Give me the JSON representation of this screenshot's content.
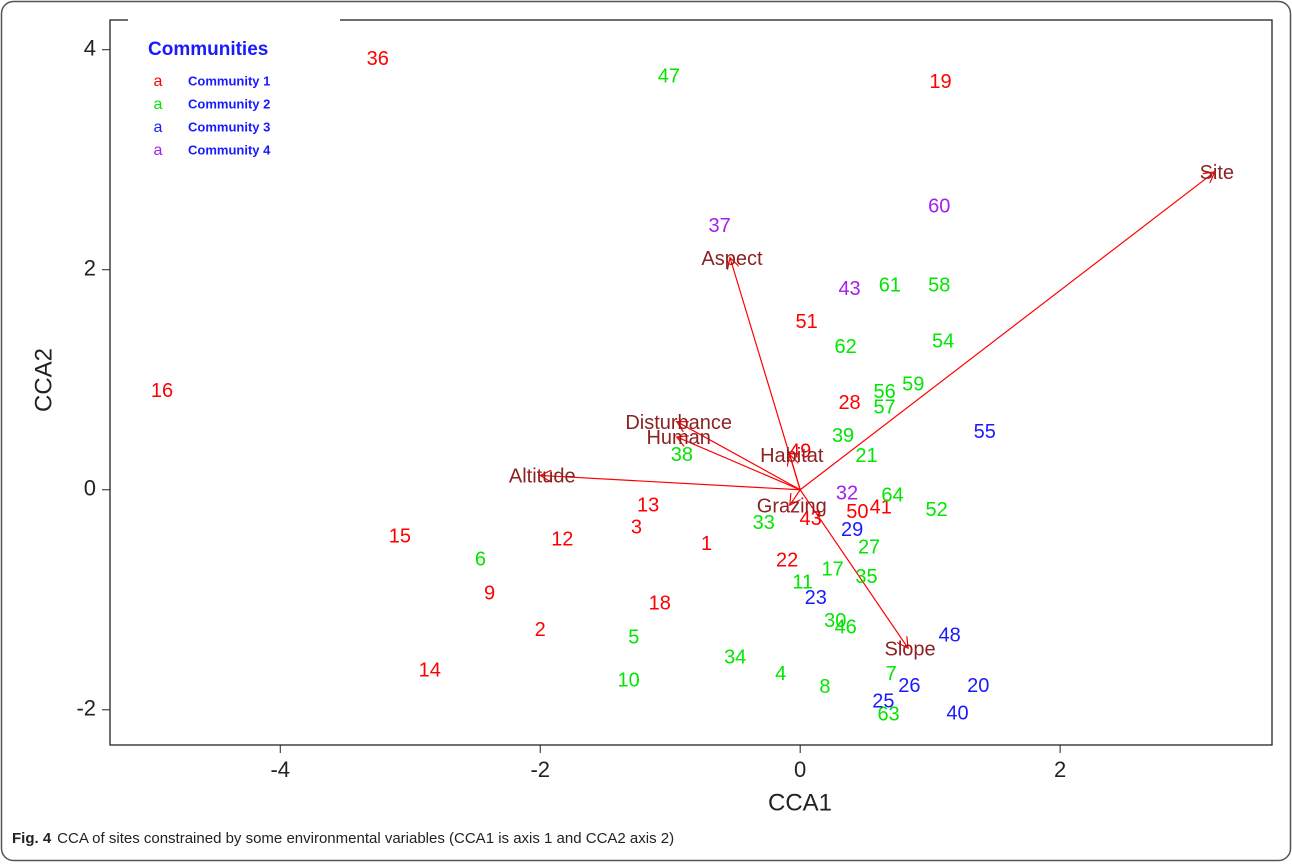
{
  "chart_data": {
    "type": "scatter",
    "xlabel": "CCA1",
    "ylabel": "CCA2",
    "xlim": [
      -5.31,
      3.63
    ],
    "ylim": [
      -2.32,
      4.27
    ],
    "xticks": [
      -4,
      -2,
      0,
      2
    ],
    "yticks": [
      -2,
      0,
      2,
      4
    ],
    "legend_title": "Communities",
    "legend_marker": "a",
    "legend_position": "upper left",
    "series": [
      {
        "name": "Community 1",
        "color": "#ff0000",
        "labels": [
          "36",
          "19",
          "16",
          "51",
          "28",
          "49",
          "13",
          "3",
          "1",
          "15",
          "12",
          "9",
          "2",
          "14",
          "18",
          "22",
          "43",
          "50",
          "41"
        ],
        "x": [
          -3.25,
          1.08,
          -4.91,
          0.05,
          0.38,
          0.0,
          -1.17,
          -1.26,
          -0.72,
          -3.08,
          -1.83,
          -2.39,
          -2.0,
          -2.85,
          -1.08,
          -0.1,
          0.08,
          0.44,
          0.62
        ],
        "y": [
          3.91,
          3.7,
          0.89,
          1.52,
          0.78,
          0.34,
          -0.15,
          -0.35,
          -0.5,
          -0.43,
          -0.46,
          -0.95,
          -1.28,
          -1.65,
          -1.04,
          -0.65,
          -0.27,
          -0.21,
          -0.17
        ]
      },
      {
        "name": "Community 2",
        "color": "#00e600",
        "labels": [
          "47",
          "61",
          "58",
          "54",
          "62",
          "56",
          "59",
          "57",
          "39",
          "21",
          "38",
          "64",
          "52",
          "33",
          "27",
          "17",
          "35",
          "11",
          "6",
          "5",
          "30",
          "46",
          "34",
          "4",
          "10",
          "8",
          "7",
          "63"
        ],
        "x": [
          -1.01,
          0.69,
          1.07,
          1.1,
          0.35,
          0.65,
          0.87,
          0.65,
          0.33,
          0.51,
          -0.91,
          0.71,
          1.05,
          -0.28,
          0.53,
          0.25,
          0.51,
          0.02,
          -2.46,
          -1.28,
          0.27,
          0.35,
          -0.5,
          -0.15,
          -1.32,
          0.19,
          0.7,
          0.68
        ],
        "y": [
          3.75,
          1.85,
          1.85,
          1.34,
          1.29,
          0.88,
          0.95,
          0.74,
          0.48,
          0.3,
          0.31,
          -0.06,
          -0.19,
          -0.31,
          -0.53,
          -0.73,
          -0.8,
          -0.85,
          -0.64,
          -1.35,
          -1.2,
          -1.26,
          -1.53,
          -1.68,
          -1.74,
          -1.8,
          -1.68,
          -2.05
        ]
      },
      {
        "name": "Community 3",
        "color": "#1a1aff",
        "labels": [
          "55",
          "29",
          "23",
          "48",
          "26",
          "20",
          "25",
          "40"
        ],
        "x": [
          1.42,
          0.4,
          0.12,
          1.15,
          0.84,
          1.37,
          0.64,
          1.21
        ],
        "y": [
          0.52,
          -0.37,
          -0.99,
          -1.33,
          -1.79,
          -1.79,
          -1.93,
          -2.04
        ]
      },
      {
        "name": "Community 4",
        "color": "#a020f0",
        "labels": [
          "37",
          "60",
          "43",
          "32"
        ],
        "x": [
          -0.62,
          1.07,
          0.38,
          0.36
        ],
        "y": [
          2.39,
          2.57,
          1.82,
          -0.04
        ]
      }
    ],
    "vector_color": "#ff0000",
    "vectors": [
      {
        "name": "Site",
        "x": 3.19,
        "y": 2.89
      },
      {
        "name": "Aspect",
        "x": -0.54,
        "y": 2.11
      },
      {
        "name": "Disturbance",
        "x": -0.95,
        "y": 0.62
      },
      {
        "name": "Human",
        "x": -0.95,
        "y": 0.48
      },
      {
        "name": "Altitude",
        "x": -2.0,
        "y": 0.13
      },
      {
        "name": "Habitat",
        "x": -0.08,
        "y": 0.32
      },
      {
        "name": "Grazing",
        "x": -0.08,
        "y": -0.14
      },
      {
        "name": "Slope",
        "x": 0.83,
        "y": -1.44
      }
    ]
  },
  "caption": {
    "label": "Fig. 4",
    "text": "CCA of sites constrained by some environmental variables (CCA1 is axis 1 and CCA2 axis 2)"
  }
}
